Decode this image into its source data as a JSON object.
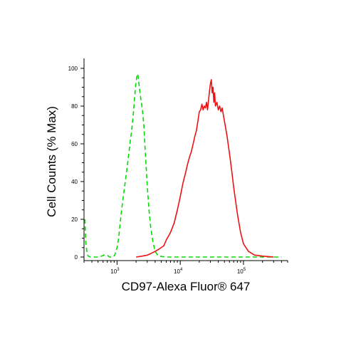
{
  "chart_data": {
    "type": "line",
    "xlabel": "CD97-Alexa Fluor® 647",
    "ylabel": "Cell Counts (% Max)",
    "x_scale": "log",
    "xlim": [
      300,
      500000
    ],
    "ylim": [
      0,
      100
    ],
    "x_ticks": [
      {
        "value": 1000,
        "base": "10",
        "exp": "3"
      },
      {
        "value": 10000,
        "base": "10",
        "exp": "4"
      },
      {
        "value": 100000,
        "base": "10",
        "exp": "5"
      }
    ],
    "y_ticks": [
      0,
      20,
      40,
      60,
      80,
      100
    ],
    "grid": false,
    "legend": "none",
    "series": [
      {
        "color": "#00dd00",
        "style": "dashed",
        "x": [
          310,
          320,
          335,
          350,
          380,
          420,
          520,
          620,
          700,
          760,
          850,
          920,
          1000,
          1060,
          1120,
          1200,
          1300,
          1400,
          1500,
          1600,
          1700,
          1800,
          1900,
          2000,
          2080,
          2150,
          2250,
          2350,
          2500,
          2650,
          2800,
          3000,
          3200,
          3400,
          3700,
          4000,
          4500,
          6000,
          10000,
          20000,
          50000,
          100000,
          200000,
          400000
        ],
        "y": [
          20,
          8,
          2,
          0.5,
          0,
          0,
          0,
          1,
          1,
          0,
          0,
          1,
          5,
          10,
          18,
          27,
          36,
          44,
          52,
          60,
          67,
          75,
          85,
          93,
          97,
          96,
          90,
          85,
          79,
          70,
          55,
          38,
          25,
          16,
          8,
          3,
          0.5,
          0,
          0,
          0,
          0,
          0,
          0,
          0
        ]
      },
      {
        "color": "#ee1111",
        "style": "solid",
        "x": [
          2000,
          2500,
          3000,
          3500,
          4000,
          4500,
          5000,
          5500,
          6000,
          7000,
          8000,
          9000,
          10000,
          11000,
          12000,
          13000,
          14000,
          15000,
          16000,
          17000,
          18000,
          19000,
          20000,
          21000,
          22000,
          23000,
          24000,
          25000,
          26000,
          27000,
          28000,
          29000,
          30000,
          31000,
          32000,
          33000,
          34000,
          35000,
          36000,
          38000,
          40000,
          42000,
          44000,
          46000,
          50000,
          55000,
          60000,
          65000,
          70000,
          80000,
          90000,
          100000,
          120000,
          150000,
          200000,
          300000
        ],
        "y": [
          0,
          0.5,
          1,
          2,
          3,
          4,
          5,
          6,
          9,
          13,
          18,
          25,
          32,
          39,
          44,
          49,
          53,
          56,
          60,
          64,
          67,
          72,
          77,
          78,
          81,
          78,
          80,
          79,
          82,
          78,
          83,
          88,
          92,
          94,
          87,
          90,
          82,
          87,
          80,
          82,
          78,
          80,
          77,
          79,
          72,
          64,
          55,
          46,
          37,
          23,
          13,
          7,
          3,
          1,
          0.5,
          0
        ]
      }
    ]
  }
}
